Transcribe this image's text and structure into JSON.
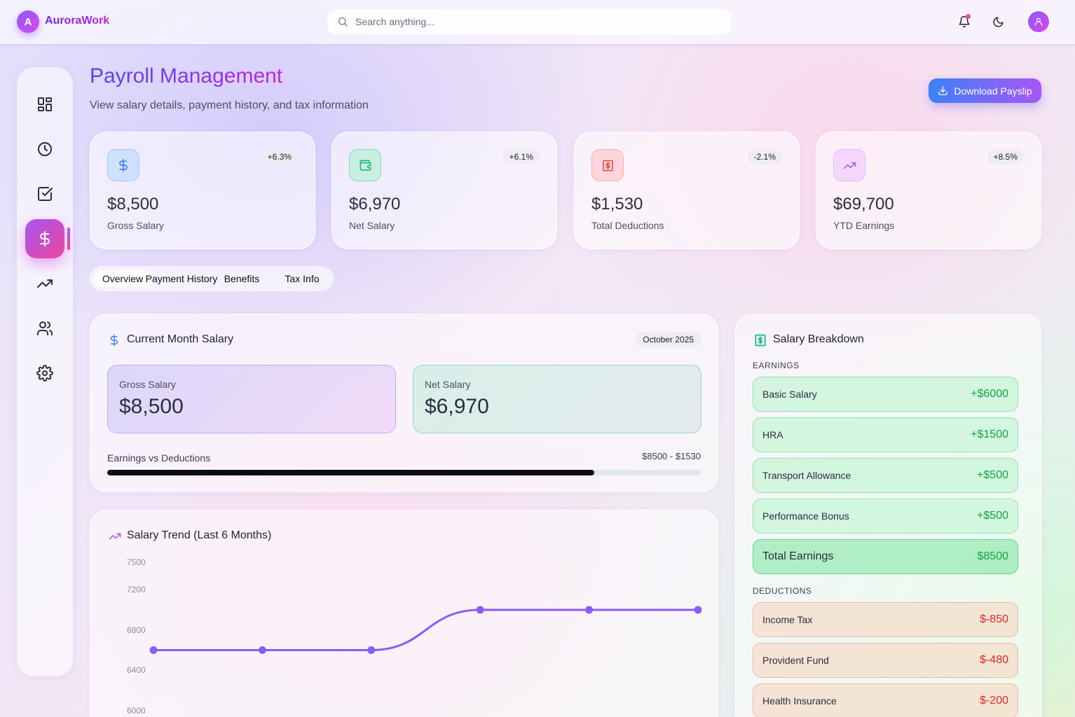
{
  "app": {
    "logo_letter": "A",
    "name": "AuroraWork"
  },
  "search": {
    "placeholder": "Search anything..."
  },
  "page": {
    "title": "Payroll Management",
    "subtitle": "View salary details, payment history, and tax information",
    "download_label": "Download Payslip"
  },
  "stats": [
    {
      "value": "$8,500",
      "label": "Gross Salary",
      "change": "+6.3%",
      "icon": "dollar-icon",
      "color": "#3b82f6"
    },
    {
      "value": "$6,970",
      "label": "Net Salary",
      "change": "+6.1%",
      "icon": "wallet-icon",
      "color": "#10b981"
    },
    {
      "value": "$1,530",
      "label": "Total Deductions",
      "change": "-2.1%",
      "icon": "receipt-icon",
      "color": "#ef4444"
    },
    {
      "value": "$69,700",
      "label": "YTD Earnings",
      "change": "+8.5%",
      "icon": "trending-up-icon",
      "color": "#a855f7"
    }
  ],
  "tabs": [
    {
      "label": "Overview",
      "active": true
    },
    {
      "label": "Payment History",
      "active": false
    },
    {
      "label": "Benefits",
      "active": false
    },
    {
      "label": "Tax Info",
      "active": false
    }
  ],
  "current_month": {
    "title": "Current Month Salary",
    "month": "October 2025",
    "gross_label": "Gross Salary",
    "gross_value": "$8,500",
    "net_label": "Net Salary",
    "net_value": "$6,970",
    "progress_label": "Earnings vs Deductions",
    "progress_range": "$8500 - $1530",
    "progress_fraction": 0.82
  },
  "trend": {
    "title": "Salary Trend (Last 6 Months)"
  },
  "chart_data": {
    "type": "line",
    "title": "Salary Trend (Last 6 Months)",
    "x": [
      "",
      "",
      "",
      "",
      "",
      ""
    ],
    "series": [
      {
        "values": [
          6600,
          6600,
          6600,
          7000,
          7000,
          7000
        ],
        "color": "#8b5cf6"
      }
    ],
    "yticks": [
      6000,
      6400,
      6800,
      7200,
      7500
    ],
    "ylim": [
      6000,
      7500
    ],
    "grid": false
  },
  "breakdown": {
    "title": "Salary Breakdown",
    "earnings_heading": "EARNINGS",
    "earnings": [
      {
        "name": "Basic Salary",
        "amount": "+$6000"
      },
      {
        "name": "HRA",
        "amount": "+$1500"
      },
      {
        "name": "Transport Allowance",
        "amount": "+$500"
      },
      {
        "name": "Performance Bonus",
        "amount": "+$500"
      }
    ],
    "total": {
      "name": "Total Earnings",
      "amount": "$8500"
    },
    "deductions_heading": "DEDUCTIONS",
    "deductions": [
      {
        "name": "Income Tax",
        "amount": "$-850"
      },
      {
        "name": "Provident Fund",
        "amount": "$-480"
      },
      {
        "name": "Health Insurance",
        "amount": "$-200"
      }
    ]
  },
  "sidebar": {
    "items": [
      {
        "icon": "dashboard-icon"
      },
      {
        "icon": "clock-icon"
      },
      {
        "icon": "check-square-icon"
      },
      {
        "icon": "dollar-icon",
        "active": true
      },
      {
        "icon": "trending-up-icon"
      },
      {
        "icon": "users-icon"
      },
      {
        "icon": "gear-icon"
      }
    ]
  }
}
